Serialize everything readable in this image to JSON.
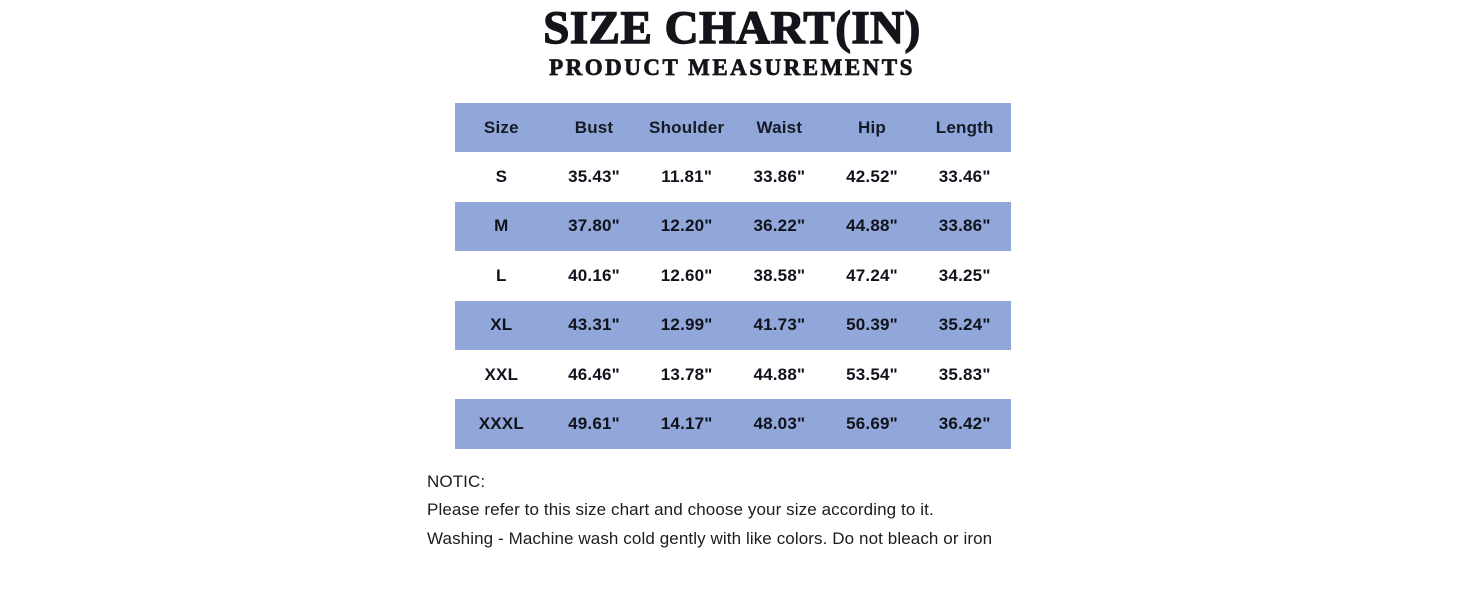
{
  "header": {
    "title": "SIZE CHART(IN)",
    "subtitle": "PRODUCT MEASUREMENTS"
  },
  "size_table": {
    "stripe_color": "#91a6d9",
    "columns": [
      "Size",
      "Bust",
      "Shoulder",
      "Waist",
      "Hip",
      "Length"
    ],
    "rows": [
      {
        "size": "S",
        "values": [
          "35.43\"",
          "11.81\"",
          "33.86\"",
          "42.52\"",
          "33.46\""
        ]
      },
      {
        "size": "M",
        "values": [
          "37.80\"",
          "12.20\"",
          "36.22\"",
          "44.88\"",
          "33.86\""
        ]
      },
      {
        "size": "L",
        "values": [
          "40.16\"",
          "12.60\"",
          "38.58\"",
          "47.24\"",
          "34.25\""
        ]
      },
      {
        "size": "XL",
        "values": [
          "43.31\"",
          "12.99\"",
          "41.73\"",
          "50.39\"",
          "35.24\""
        ]
      },
      {
        "size": "XXL",
        "values": [
          "46.46\"",
          "13.78\"",
          "44.88\"",
          "53.54\"",
          "35.83\""
        ]
      },
      {
        "size": "XXXL",
        "values": [
          "49.61\"",
          "14.17\"",
          "48.03\"",
          "56.69\"",
          "36.42\""
        ]
      }
    ]
  },
  "notice": {
    "heading": "NOTIC:",
    "lines": [
      "Please refer to this size chart and choose your size according to it.",
      "Washing - Machine wash cold gently with like colors. Do not bleach or iron"
    ]
  }
}
